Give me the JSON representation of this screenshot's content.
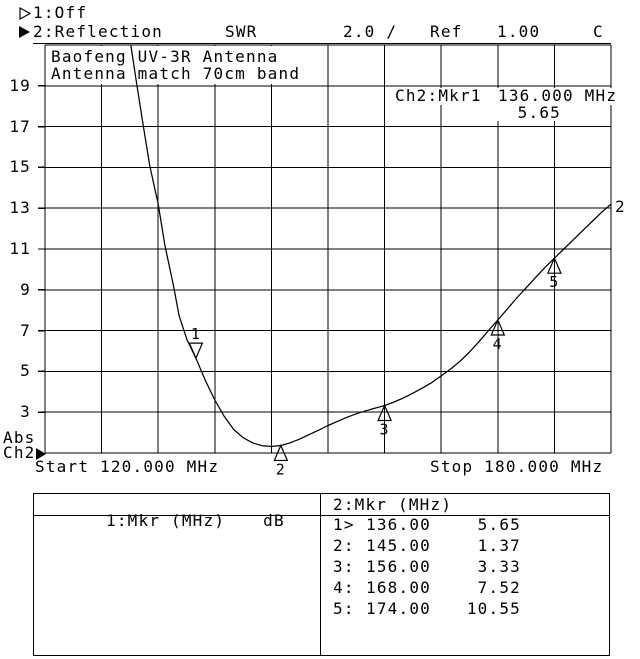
{
  "colors": {
    "foreground": "#000000",
    "background": "#ffffff"
  },
  "channel_bar": {
    "ch1": {
      "marker_icon": "hollow-right-triangle",
      "label": "1:Off"
    },
    "ch2": {
      "marker_icon": "filled-right-triangle",
      "label": "2:Reflection",
      "format": "SWR",
      "scale_per_div": "2.0 /",
      "ref_label": "Ref",
      "ref_value": "1.00",
      "cal_indicator": "C"
    }
  },
  "chart_data": {
    "type": "line",
    "title": "Baofeng UV-3R Antenna",
    "subtitle": "Antenna match 70cm band",
    "xlabel": "Start 120.000 MHz",
    "xlabel_right": "Stop 180.000 MHz",
    "ylabel": "SWR",
    "x_unit": "MHz",
    "x_range": [
      120,
      180
    ],
    "y_range": [
      1,
      21
    ],
    "y_scale_per_div": 2.0,
    "y_ref": 1.0,
    "grid": {
      "x_divisions": 10,
      "y_divisions": 10,
      "grid_on": true
    },
    "y_tick_labels": [
      "19",
      "17",
      "15",
      "13",
      "11",
      "9",
      "7",
      "5",
      "3"
    ],
    "axis_mode_label": "Abs",
    "axis_channel_label": "Ch2",
    "trace_number_label": "2",
    "active_marker_readout": {
      "channel_marker": "Ch2:Mkr1",
      "frequency": "136.000 MHz",
      "value": "5.65"
    },
    "series": [
      {
        "name": "Ch2 Reflection SWR",
        "points": [
          [
            129.1,
            21.0
          ],
          [
            129.75,
            19.0
          ],
          [
            130.4,
            17.1
          ],
          [
            131.1,
            15.1
          ],
          [
            132.0,
            13.2
          ],
          [
            132.7,
            11.2
          ],
          [
            133.6,
            9.25
          ],
          [
            134.2,
            7.75
          ],
          [
            135.05,
            6.55
          ],
          [
            136.0,
            5.65
          ],
          [
            137.0,
            4.55
          ],
          [
            138.0,
            3.6
          ],
          [
            139.0,
            2.8
          ],
          [
            140.0,
            2.15
          ],
          [
            141.0,
            1.75
          ],
          [
            142.0,
            1.5
          ],
          [
            143.0,
            1.36
          ],
          [
            144.0,
            1.32
          ],
          [
            145.0,
            1.37
          ],
          [
            146.0,
            1.5
          ],
          [
            147.0,
            1.68
          ],
          [
            148.0,
            1.9
          ],
          [
            149.0,
            2.12
          ],
          [
            150.0,
            2.35
          ],
          [
            151.0,
            2.55
          ],
          [
            152.0,
            2.75
          ],
          [
            153.0,
            2.92
          ],
          [
            154.0,
            3.07
          ],
          [
            155.0,
            3.2
          ],
          [
            156.0,
            3.33
          ],
          [
            157.0,
            3.5
          ],
          [
            158.0,
            3.7
          ],
          [
            159.0,
            3.93
          ],
          [
            160.0,
            4.18
          ],
          [
            161.0,
            4.45
          ],
          [
            162.0,
            4.78
          ],
          [
            163.0,
            5.12
          ],
          [
            164.0,
            5.5
          ],
          [
            165.0,
            5.95
          ],
          [
            166.0,
            6.45
          ],
          [
            167.0,
            7.0
          ],
          [
            168.0,
            7.52
          ],
          [
            169.0,
            8.05
          ],
          [
            170.0,
            8.6
          ],
          [
            171.0,
            9.1
          ],
          [
            172.0,
            9.6
          ],
          [
            173.0,
            10.1
          ],
          [
            174.0,
            10.55
          ],
          [
            175.0,
            11.0
          ],
          [
            176.0,
            11.45
          ],
          [
            177.0,
            11.9
          ],
          [
            178.0,
            12.35
          ],
          [
            179.0,
            12.8
          ],
          [
            180.0,
            13.2
          ]
        ]
      }
    ],
    "markers": [
      {
        "label": "1",
        "mhz": 136.0,
        "swr": 5.65,
        "active": true
      },
      {
        "label": "2",
        "mhz": 145.0,
        "swr": 1.37,
        "active": false
      },
      {
        "label": "3",
        "mhz": 156.0,
        "swr": 3.33,
        "active": false
      },
      {
        "label": "4",
        "mhz": 168.0,
        "swr": 7.52,
        "active": false
      },
      {
        "label": "5",
        "mhz": 174.0,
        "swr": 10.55,
        "active": false
      }
    ]
  },
  "marker_table": {
    "ch1_header": {
      "title": "1:Mkr (MHz)",
      "unit": "dB"
    },
    "ch2_header": {
      "title": "2:Mkr (MHz)"
    },
    "ch1_rows": [],
    "ch2_rows": [
      {
        "id": "1>",
        "freq": "136.00",
        "value": "5.65"
      },
      {
        "id": "2:",
        "freq": "145.00",
        "value": "1.37"
      },
      {
        "id": "3:",
        "freq": "156.00",
        "value": "3.33"
      },
      {
        "id": "4:",
        "freq": "168.00",
        "value": "7.52"
      },
      {
        "id": "5:",
        "freq": "174.00",
        "value": "10.55"
      }
    ]
  }
}
